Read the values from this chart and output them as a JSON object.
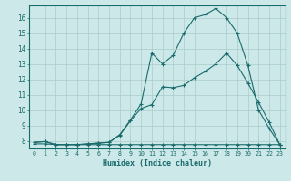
{
  "bg_color": "#cce8e8",
  "grid_color": "#aacccc",
  "line_color": "#1a6b6b",
  "xlabel": "Humidex (Indice chaleur)",
  "xlim": [
    -0.5,
    23.5
  ],
  "ylim": [
    7.5,
    16.8
  ],
  "yticks": [
    8,
    9,
    10,
    11,
    12,
    13,
    14,
    15,
    16
  ],
  "xtick_labels": [
    "0",
    "1",
    "2",
    "3",
    "4",
    "5",
    "6",
    "7",
    "8",
    "9",
    "10",
    "11",
    "12",
    "13",
    "14",
    "15",
    "16",
    "17",
    "18",
    "19",
    "20",
    "21",
    "22",
    "23"
  ],
  "line1_x": [
    0,
    1,
    2,
    3,
    4,
    5,
    6,
    7,
    8,
    9,
    10,
    11,
    12,
    13,
    14,
    15,
    16,
    17,
    18,
    19,
    20,
    21,
    22,
    23
  ],
  "line1_y": [
    7.8,
    7.8,
    7.75,
    7.75,
    7.75,
    7.75,
    7.75,
    7.75,
    7.75,
    7.75,
    7.75,
    7.75,
    7.75,
    7.75,
    7.75,
    7.75,
    7.75,
    7.75,
    7.75,
    7.75,
    7.75,
    7.75,
    7.75,
    7.75
  ],
  "line2_x": [
    0,
    1,
    2,
    3,
    4,
    5,
    6,
    7,
    8,
    9,
    10,
    11,
    12,
    13,
    14,
    15,
    16,
    17,
    18,
    19,
    20,
    21,
    22,
    23
  ],
  "line2_y": [
    7.9,
    7.95,
    7.75,
    7.75,
    7.75,
    7.8,
    7.85,
    7.9,
    8.35,
    9.3,
    10.1,
    10.35,
    11.5,
    11.45,
    11.6,
    12.1,
    12.5,
    13.0,
    13.7,
    12.9,
    11.75,
    10.5,
    9.2,
    7.75
  ],
  "line3_x": [
    0,
    1,
    2,
    3,
    4,
    5,
    6,
    7,
    8,
    9,
    10,
    11,
    12,
    13,
    14,
    15,
    16,
    17,
    18,
    19,
    20,
    21,
    22,
    23
  ],
  "line3_y": [
    7.9,
    7.95,
    7.75,
    7.75,
    7.75,
    7.8,
    7.85,
    7.9,
    8.4,
    9.35,
    10.4,
    13.7,
    13.0,
    13.55,
    15.0,
    16.0,
    16.2,
    16.6,
    16.0,
    15.0,
    12.9,
    10.0,
    8.8,
    7.75
  ]
}
